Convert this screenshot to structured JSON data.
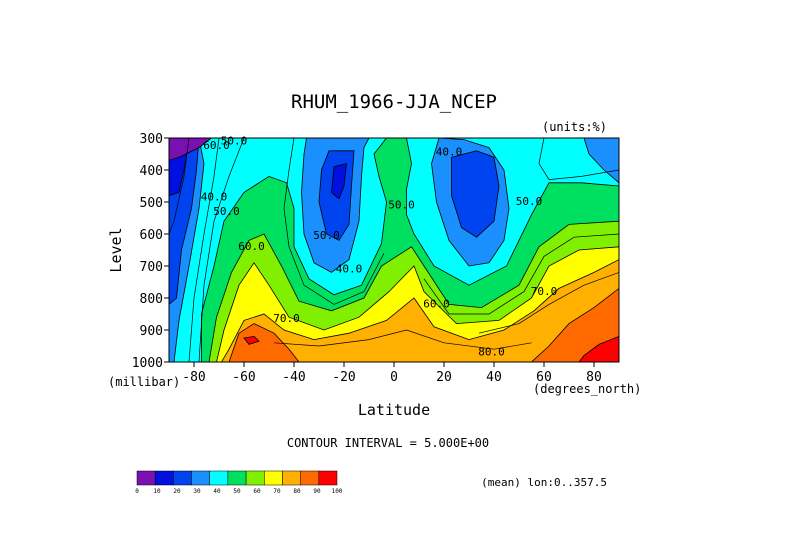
{
  "chart_data": {
    "type": "contour",
    "title": "RHUM_1966-JJA_NCEP",
    "units_label": "(units:%)",
    "xlabel": "Latitude",
    "ylabel": "Level",
    "x_units_label": "(degrees_north)",
    "y_units_label": "(millibar)",
    "xlim": [
      -90,
      90
    ],
    "ylim": [
      300,
      1000
    ],
    "x_ticks": [
      -80,
      -60,
      -40,
      -20,
      0,
      20,
      40,
      60,
      80
    ],
    "y_ticks": [
      300,
      400,
      500,
      600,
      700,
      800,
      900,
      1000
    ],
    "contour_interval_text": "CONTOUR INTERVAL = 5.000E+00",
    "mean_text": "(mean) lon:0..357.5",
    "colorbar": {
      "levels": [
        0,
        10,
        20,
        30,
        40,
        50,
        60,
        70,
        80,
        90,
        100
      ],
      "colors": [
        "#7a10b0",
        "#0010e0",
        "#0044f0",
        "#1a90ff",
        "#00ffff",
        "#00e060",
        "#80f000",
        "#ffff00",
        "#ffb000",
        "#ff6a00",
        "#ff0000"
      ]
    },
    "contour_labels": [
      {
        "text": "60.0",
        "lat": -71,
        "lev": 335
      },
      {
        "text": "50.0",
        "lat": -64,
        "lev": 320
      },
      {
        "text": "40.0",
        "lat": -72,
        "lev": 495
      },
      {
        "text": "50.0",
        "lat": -67,
        "lev": 540
      },
      {
        "text": "60.0",
        "lat": -57,
        "lev": 650
      },
      {
        "text": "70.0",
        "lat": -43,
        "lev": 875
      },
      {
        "text": "50.0",
        "lat": -27,
        "lev": 615
      },
      {
        "text": "40.0",
        "lat": -18,
        "lev": 720
      },
      {
        "text": "50.0",
        "lat": 3,
        "lev": 520
      },
      {
        "text": "40.0",
        "lat": 22,
        "lev": 355
      },
      {
        "text": "60.0",
        "lat": 17,
        "lev": 830
      },
      {
        "text": "50.0",
        "lat": 54,
        "lev": 510
      },
      {
        "text": "70.0",
        "lat": 60,
        "lev": 790
      },
      {
        "text": "80.0",
        "lat": 39,
        "lev": 980
      }
    ]
  }
}
